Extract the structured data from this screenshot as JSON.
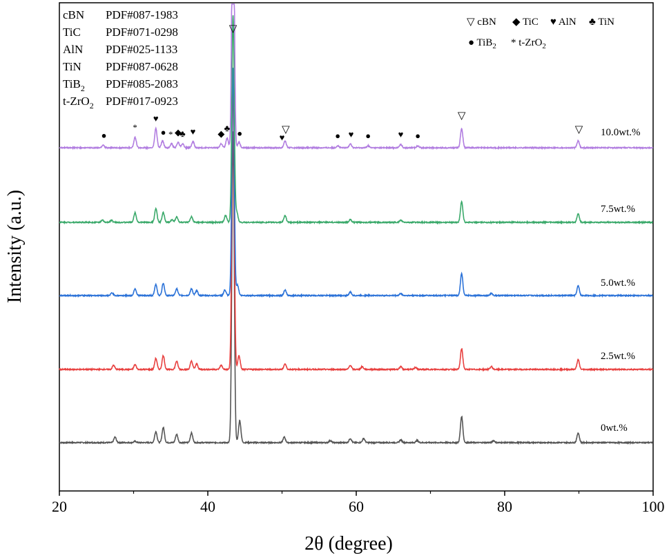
{
  "chart_data": {
    "type": "line",
    "xlabel": "2θ (degree)",
    "ylabel": "Intensity (a.u.)",
    "xlim": [
      20,
      100
    ],
    "xticks": [
      20,
      40,
      60,
      80,
      100
    ],
    "yticks_shown": false,
    "legend_position": "top-right",
    "grid": false,
    "phase_legend": [
      {
        "symbol": "▽",
        "name": "cBN"
      },
      {
        "symbol": "◆",
        "name": "TiC"
      },
      {
        "symbol": "♥",
        "name": "AlN"
      },
      {
        "symbol": "♣",
        "name": "TiN"
      },
      {
        "symbol": "●",
        "name": "TiB",
        "subscript": "2"
      },
      {
        "symbol": "*",
        "name": "t-ZrO",
        "subscript": "2"
      }
    ],
    "reference_cards": [
      {
        "phase": "cBN",
        "subscript": "",
        "pdf": "PDF#087-1983"
      },
      {
        "phase": "TiC",
        "subscript": "",
        "pdf": "PDF#071-0298"
      },
      {
        "phase": "AlN",
        "subscript": "",
        "pdf": "PDF#025-1133"
      },
      {
        "phase": "TiN",
        "subscript": "",
        "pdf": "PDF#087-0628"
      },
      {
        "phase": "TiB",
        "subscript": "2",
        "pdf": "PDF#085-2083"
      },
      {
        "phase": "t-ZrO",
        "subscript": "2",
        "pdf": "PDF#017-0923"
      }
    ],
    "peak_markers": [
      {
        "x": 26.0,
        "symbol": "●"
      },
      {
        "x": 30.2,
        "symbol": "*"
      },
      {
        "x": 33.0,
        "symbol": "♥"
      },
      {
        "x": 34.0,
        "symbol": "●"
      },
      {
        "x": 35.0,
        "symbol": "*"
      },
      {
        "x": 36.0,
        "symbol": "◆"
      },
      {
        "x": 36.6,
        "symbol": "♣"
      },
      {
        "x": 38.0,
        "symbol": "♥"
      },
      {
        "x": 41.8,
        "symbol": "◆"
      },
      {
        "x": 42.6,
        "symbol": "♣"
      },
      {
        "x": 43.4,
        "symbol": "▽"
      },
      {
        "x": 44.3,
        "symbol": "●"
      },
      {
        "x": 50.5,
        "symbol": "▽"
      },
      {
        "x": 50.0,
        "symbol": "♥"
      },
      {
        "x": 57.5,
        "symbol": "●"
      },
      {
        "x": 59.3,
        "symbol": "♥"
      },
      {
        "x": 61.6,
        "symbol": "●"
      },
      {
        "x": 66.0,
        "symbol": "♥"
      },
      {
        "x": 68.3,
        "symbol": "●"
      },
      {
        "x": 74.2,
        "symbol": "▽"
      },
      {
        "x": 90.0,
        "symbol": "▽"
      }
    ],
    "series": [
      {
        "name": "0wt.%",
        "color": "#555555",
        "peaks": [
          {
            "x": 27.5,
            "h": 8
          },
          {
            "x": 30.2,
            "h": 2
          },
          {
            "x": 33.0,
            "h": 16
          },
          {
            "x": 34.0,
            "h": 22
          },
          {
            "x": 35.8,
            "h": 12
          },
          {
            "x": 37.8,
            "h": 14
          },
          {
            "x": 43.4,
            "h": 450
          },
          {
            "x": 44.3,
            "h": 32
          },
          {
            "x": 50.3,
            "h": 8
          },
          {
            "x": 56.5,
            "h": 3
          },
          {
            "x": 59.2,
            "h": 6
          },
          {
            "x": 61.0,
            "h": 6
          },
          {
            "x": 66.0,
            "h": 4
          },
          {
            "x": 68.2,
            "h": 3
          },
          {
            "x": 74.2,
            "h": 38
          },
          {
            "x": 78.5,
            "h": 3
          },
          {
            "x": 89.9,
            "h": 14
          }
        ]
      },
      {
        "name": "2.5wt.%",
        "color": "#e8403f",
        "peaks": [
          {
            "x": 27.3,
            "h": 6
          },
          {
            "x": 30.2,
            "h": 7
          },
          {
            "x": 33.0,
            "h": 16
          },
          {
            "x": 34.0,
            "h": 20
          },
          {
            "x": 35.8,
            "h": 12
          },
          {
            "x": 37.8,
            "h": 12
          },
          {
            "x": 38.5,
            "h": 8
          },
          {
            "x": 41.8,
            "h": 6
          },
          {
            "x": 43.4,
            "h": 420
          },
          {
            "x": 44.2,
            "h": 20
          },
          {
            "x": 50.4,
            "h": 8
          },
          {
            "x": 59.2,
            "h": 6
          },
          {
            "x": 60.8,
            "h": 4
          },
          {
            "x": 66.0,
            "h": 4
          },
          {
            "x": 68.0,
            "h": 3
          },
          {
            "x": 74.2,
            "h": 30
          },
          {
            "x": 78.2,
            "h": 4
          },
          {
            "x": 89.9,
            "h": 14
          }
        ]
      },
      {
        "name": "5.0wt.%",
        "color": "#2b72d8",
        "peaks": [
          {
            "x": 27.1,
            "h": 4
          },
          {
            "x": 30.2,
            "h": 10
          },
          {
            "x": 33.0,
            "h": 16
          },
          {
            "x": 34.0,
            "h": 18
          },
          {
            "x": 35.8,
            "h": 10
          },
          {
            "x": 37.8,
            "h": 10
          },
          {
            "x": 38.5,
            "h": 7
          },
          {
            "x": 42.3,
            "h": 8
          },
          {
            "x": 43.4,
            "h": 330
          },
          {
            "x": 44.0,
            "h": 15
          },
          {
            "x": 50.4,
            "h": 8
          },
          {
            "x": 59.2,
            "h": 5
          },
          {
            "x": 66.0,
            "h": 3
          },
          {
            "x": 74.2,
            "h": 32
          },
          {
            "x": 78.2,
            "h": 3
          },
          {
            "x": 89.9,
            "h": 14
          }
        ]
      },
      {
        "name": "7.5wt.%",
        "color": "#3aa96a",
        "peaks": [
          {
            "x": 25.8,
            "h": 3
          },
          {
            "x": 27.0,
            "h": 3
          },
          {
            "x": 30.2,
            "h": 14
          },
          {
            "x": 33.0,
            "h": 20
          },
          {
            "x": 34.0,
            "h": 14
          },
          {
            "x": 35.2,
            "h": 4
          },
          {
            "x": 35.8,
            "h": 8
          },
          {
            "x": 37.8,
            "h": 8
          },
          {
            "x": 42.4,
            "h": 10
          },
          {
            "x": 43.4,
            "h": 300
          },
          {
            "x": 43.9,
            "h": 15
          },
          {
            "x": 50.4,
            "h": 10
          },
          {
            "x": 59.2,
            "h": 4
          },
          {
            "x": 66.0,
            "h": 3
          },
          {
            "x": 74.2,
            "h": 30
          },
          {
            "x": 89.9,
            "h": 12
          }
        ]
      },
      {
        "name": "10.0wt.%",
        "color": "#b17de0",
        "peaks": [
          {
            "x": 25.9,
            "h": 4
          },
          {
            "x": 30.2,
            "h": 15
          },
          {
            "x": 33.0,
            "h": 28
          },
          {
            "x": 33.9,
            "h": 10
          },
          {
            "x": 35.1,
            "h": 6
          },
          {
            "x": 36.0,
            "h": 8
          },
          {
            "x": 36.6,
            "h": 6
          },
          {
            "x": 38.0,
            "h": 9
          },
          {
            "x": 41.8,
            "h": 6
          },
          {
            "x": 42.6,
            "h": 14
          },
          {
            "x": 43.4,
            "h": 430
          },
          {
            "x": 44.2,
            "h": 8
          },
          {
            "x": 50.4,
            "h": 10
          },
          {
            "x": 57.5,
            "h": 3
          },
          {
            "x": 59.2,
            "h": 6
          },
          {
            "x": 61.6,
            "h": 3
          },
          {
            "x": 66.0,
            "h": 5
          },
          {
            "x": 68.3,
            "h": 3
          },
          {
            "x": 74.2,
            "h": 28
          },
          {
            "x": 89.9,
            "h": 10
          }
        ]
      }
    ]
  }
}
